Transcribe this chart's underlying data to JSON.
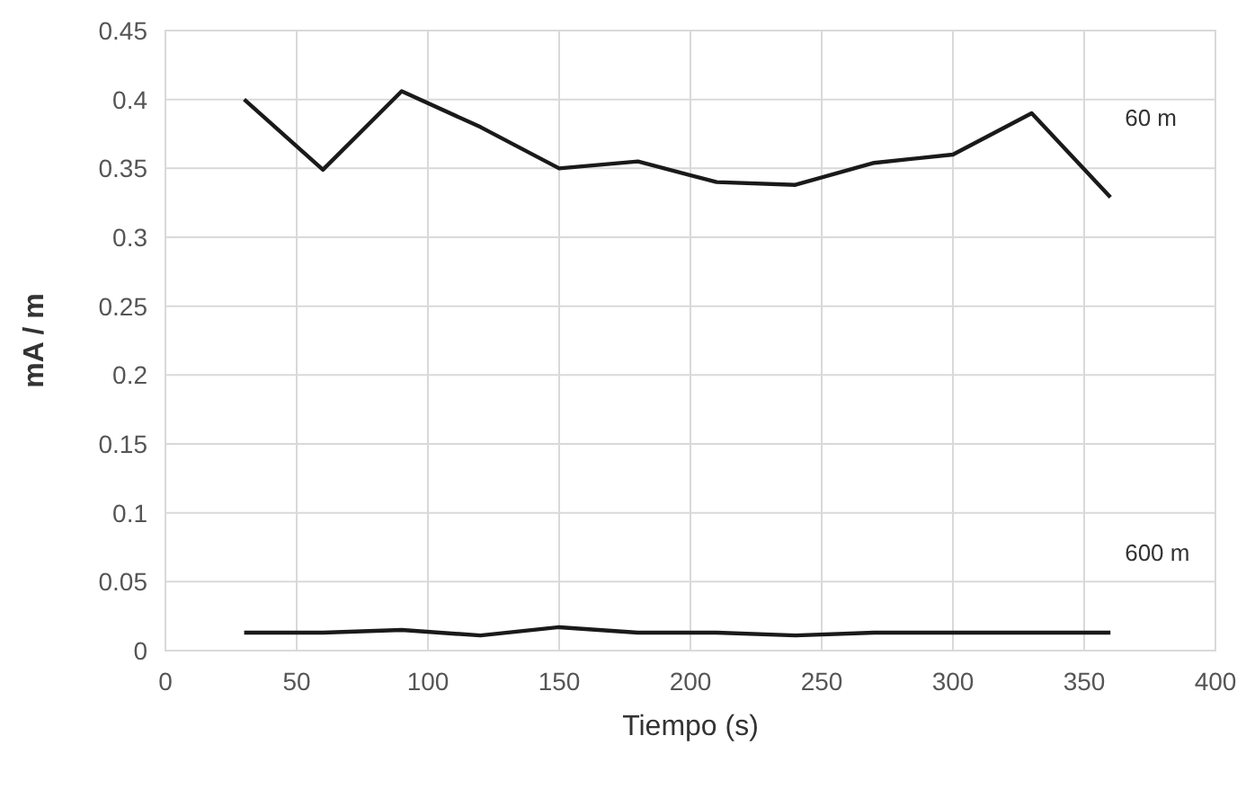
{
  "chart_data": {
    "type": "line",
    "xlabel": "Tiempo (s)",
    "ylabel": "mA / m",
    "x": [
      30,
      60,
      90,
      120,
      150,
      180,
      210,
      240,
      270,
      300,
      330,
      360
    ],
    "series": [
      {
        "name": "60 m",
        "color": "#1a1a1a",
        "values": [
          0.4,
          0.349,
          0.406,
          0.38,
          0.35,
          0.355,
          0.34,
          0.338,
          0.354,
          0.36,
          0.39,
          0.329
        ]
      },
      {
        "name": "600 m",
        "color": "#1a1a1a",
        "values": [
          0.013,
          0.013,
          0.015,
          0.011,
          0.017,
          0.013,
          0.013,
          0.011,
          0.013,
          0.013,
          0.013,
          0.013
        ]
      }
    ],
    "xlim": [
      0,
      400
    ],
    "xticks": [
      0,
      50,
      100,
      150,
      200,
      250,
      300,
      350,
      400
    ],
    "ylim": [
      0,
      0.45
    ],
    "yticks": [
      0,
      0.05,
      0.1,
      0.15,
      0.2,
      0.25,
      0.3,
      0.35,
      0.4,
      0.45
    ],
    "grid": true,
    "marker": "none",
    "line_style": "solid"
  }
}
